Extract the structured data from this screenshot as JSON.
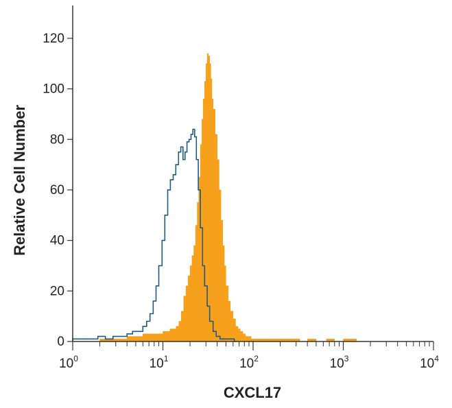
{
  "chart_data": {
    "type": "area",
    "xlabel": "CXCL17",
    "ylabel": "Relative Cell Number",
    "xscale": "log",
    "xlim": [
      1,
      10000
    ],
    "ylim": [
      0,
      133
    ],
    "x_ticks": [
      {
        "base": "10",
        "exp": "0"
      },
      {
        "base": "10",
        "exp": "1"
      },
      {
        "base": "10",
        "exp": "2"
      },
      {
        "base": "10",
        "exp": "3"
      },
      {
        "base": "10",
        "exp": "4"
      }
    ],
    "y_ticks": [
      0,
      20,
      40,
      60,
      80,
      100,
      120
    ],
    "grid": false,
    "legend": "none",
    "series": [
      {
        "style": "outline",
        "color": "#1f5a85",
        "x": [
          1.0,
          1.6,
          1.9,
          2.3,
          2.8,
          3.3,
          4.0,
          4.6,
          5.3,
          6.0,
          6.6,
          7.2,
          7.8,
          8.4,
          9.0,
          9.8,
          10.5,
          11.3,
          12.1,
          13.0,
          13.9,
          14.9,
          15.8,
          16.7,
          17.6,
          18.5,
          19.5,
          20.5,
          21.5,
          22.5,
          23.5,
          24.7,
          26.0,
          27.5,
          29.0,
          31.0,
          33.0,
          36.0,
          39.0,
          43.0,
          48.0,
          55.0,
          62.0
        ],
        "values": [
          1,
          1,
          2,
          1,
          2,
          2,
          3,
          4,
          4,
          6,
          8,
          11,
          16,
          22,
          30,
          40,
          50,
          60,
          64,
          66,
          70,
          75,
          77,
          72,
          75,
          79,
          80,
          82,
          84,
          81,
          72,
          60,
          45,
          30,
          22,
          14,
          8,
          4,
          2,
          1,
          1,
          1,
          0
        ]
      },
      {
        "style": "filled",
        "color": "#f6a01b",
        "x": [
          1.0,
          2.0,
          3.0,
          4.0,
          5.0,
          6.0,
          7.0,
          8.0,
          9.0,
          10.0,
          11.0,
          12.0,
          13.0,
          14.0,
          15.0,
          16.0,
          17.0,
          18.0,
          19.0,
          20.0,
          21.0,
          22.0,
          23.0,
          24.0,
          25.0,
          26.0,
          27.0,
          28.0,
          29.0,
          30.0,
          31.0,
          32.0,
          33.0,
          34.0,
          35.0,
          36.0,
          38.0,
          40.0,
          42.0,
          44.0,
          46.0,
          48.0,
          50.0,
          53.0,
          56.0,
          60.0,
          64.0,
          68.0,
          72.0,
          77.0,
          82.0,
          88.0,
          95.0,
          110.0,
          130.0,
          150.0,
          180.0,
          220.0,
          270.0,
          330.0,
          400.0,
          500.0,
          650.0,
          800.0,
          1000.0,
          1200.0,
          1400.0
        ],
        "values": [
          0,
          1,
          1,
          2,
          2,
          3,
          3,
          3,
          3,
          4,
          4,
          5,
          5,
          6,
          8,
          12,
          18,
          22,
          26,
          30,
          34,
          38,
          46,
          55,
          65,
          78,
          88,
          96,
          103,
          110,
          114,
          113,
          110,
          104,
          96,
          92,
          82,
          72,
          60,
          48,
          38,
          30,
          22,
          16,
          12,
          9,
          6,
          5,
          4,
          3,
          2,
          2,
          1,
          1,
          1,
          1,
          1,
          1,
          1,
          0,
          1,
          0,
          1,
          0,
          1,
          1,
          0
        ]
      }
    ]
  }
}
